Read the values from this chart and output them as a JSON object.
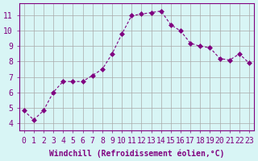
{
  "x": [
    0,
    1,
    2,
    3,
    4,
    5,
    6,
    7,
    8,
    9,
    10,
    11,
    12,
    13,
    14,
    15,
    16,
    17,
    18,
    19,
    20,
    21,
    22,
    23
  ],
  "y": [
    4.8,
    4.2,
    4.8,
    6.0,
    6.7,
    6.7,
    6.7,
    7.1,
    7.5,
    8.5,
    9.8,
    11.0,
    11.1,
    11.2,
    11.3,
    10.4,
    10.0,
    9.2,
    9.0,
    8.9,
    8.2,
    8.1,
    8.5,
    7.9
  ],
  "line_color": "#800080",
  "marker": "D",
  "marker_size": 3,
  "bg_color": "#d8f5f5",
  "grid_color": "#aaaaaa",
  "xlabel": "Windchill (Refroidissement éolien,°C)",
  "ylabel": "",
  "xlim": [
    -0.5,
    23.5
  ],
  "ylim": [
    3.5,
    11.8
  ],
  "yticks": [
    4,
    5,
    6,
    7,
    8,
    9,
    10,
    11
  ],
  "xticks": [
    0,
    1,
    2,
    3,
    4,
    5,
    6,
    7,
    8,
    9,
    10,
    11,
    12,
    13,
    14,
    15,
    16,
    17,
    18,
    19,
    20,
    21,
    22,
    23
  ],
  "tick_color": "#800080",
  "label_color": "#800080",
  "title_color": "#800080",
  "spine_color": "#800080",
  "font_size": 7,
  "xlabel_font_size": 7
}
